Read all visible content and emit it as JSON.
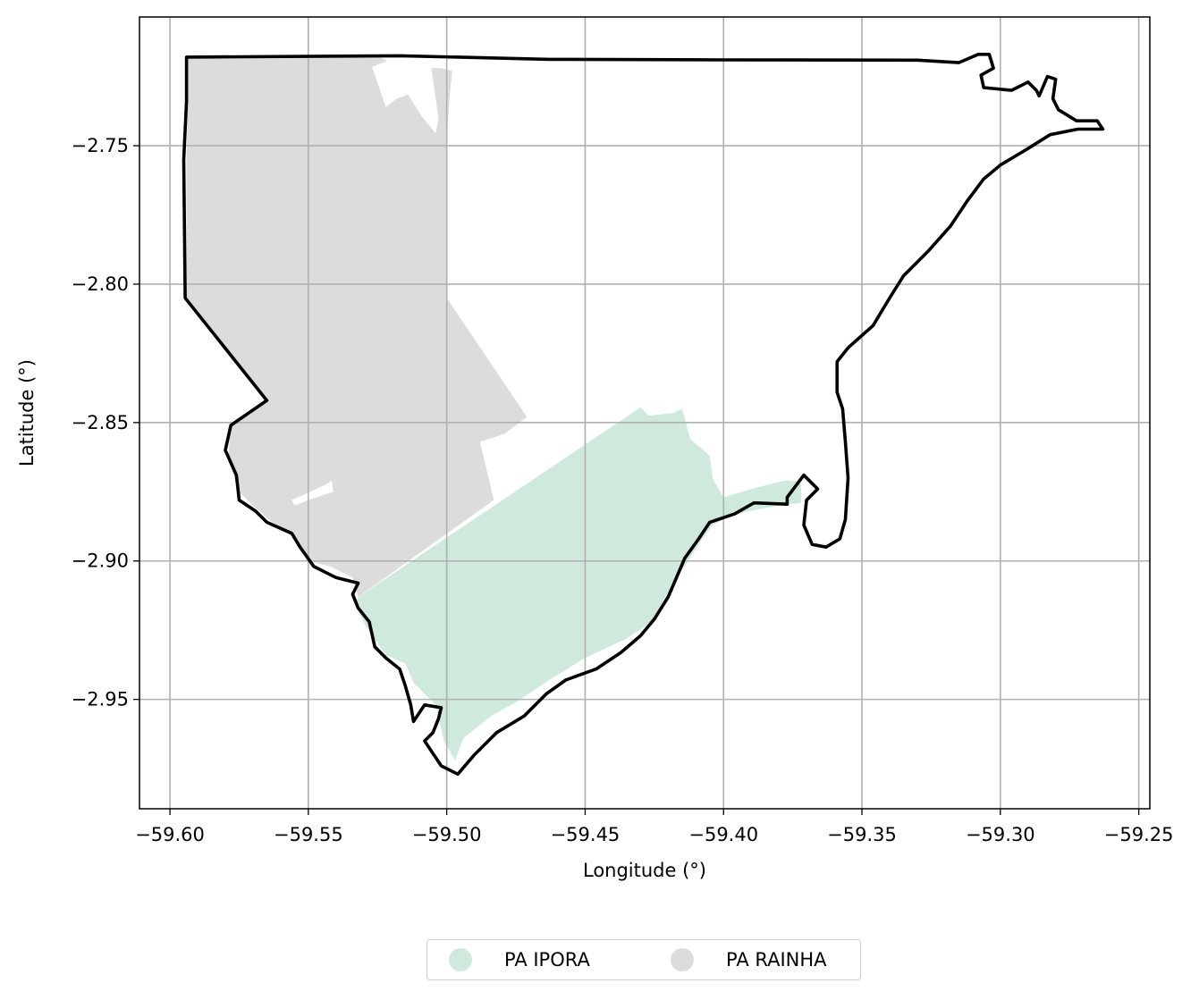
{
  "chart_data": {
    "type": "map",
    "xlabel": "Longitude (°)",
    "ylabel": "Latitude (°)",
    "xlim": [
      -59.611,
      -59.246
    ],
    "ylim": [
      -2.9895,
      -2.7035
    ],
    "x_ticks": [
      -59.6,
      -59.55,
      -59.5,
      -59.45,
      -59.4,
      -59.35,
      -59.3,
      -59.25
    ],
    "x_tick_labels": [
      "−59.60",
      "−59.55",
      "−59.50",
      "−59.45",
      "−59.40",
      "−59.35",
      "−59.30",
      "−59.25"
    ],
    "y_ticks": [
      -2.75,
      -2.8,
      -2.85,
      -2.9,
      -2.95
    ],
    "y_tick_labels": [
      "−2.75",
      "−2.80",
      "−2.85",
      "−2.90",
      "−2.95"
    ],
    "grid": true,
    "legend_placement": "bottom-center",
    "regions": [
      {
        "name": "PA IPORA",
        "color": "#cfeadd",
        "polygon": [
          [
            -59.532,
            -2.913
          ],
          [
            -59.43,
            -2.8445
          ],
          [
            -59.427,
            -2.8475
          ],
          [
            -59.418,
            -2.8465
          ],
          [
            -59.415,
            -2.845
          ],
          [
            -59.412,
            -2.856
          ],
          [
            -59.405,
            -2.862
          ],
          [
            -59.404,
            -2.87
          ],
          [
            -59.4,
            -2.877
          ],
          [
            -59.39,
            -2.874
          ],
          [
            -59.378,
            -2.871
          ],
          [
            -59.374,
            -2.871
          ],
          [
            -59.372,
            -2.872
          ],
          [
            -59.372,
            -2.879
          ],
          [
            -59.38,
            -2.88
          ],
          [
            -59.391,
            -2.882
          ],
          [
            -59.398,
            -2.884
          ],
          [
            -59.404,
            -2.887
          ],
          [
            -59.409,
            -2.894
          ],
          [
            -59.416,
            -2.905
          ],
          [
            -59.421,
            -2.913
          ],
          [
            -59.426,
            -2.922
          ],
          [
            -59.435,
            -2.928
          ],
          [
            -59.45,
            -2.935
          ],
          [
            -59.463,
            -2.943
          ],
          [
            -59.475,
            -2.951
          ],
          [
            -59.484,
            -2.956
          ],
          [
            -59.494,
            -2.964
          ],
          [
            -59.497,
            -2.972
          ],
          [
            -59.501,
            -2.965
          ],
          [
            -59.504,
            -2.952
          ],
          [
            -59.512,
            -2.944
          ],
          [
            -59.515,
            -2.937
          ],
          [
            -59.522,
            -2.934
          ],
          [
            -59.529,
            -2.924
          ],
          [
            -59.533,
            -2.916
          ]
        ]
      },
      {
        "name": "PA RAINHA",
        "color": "#dcdcdc",
        "polygon": [
          [
            -59.5945,
            -2.718
          ],
          [
            -59.524,
            -2.718
          ],
          [
            -59.519,
            -2.721
          ],
          [
            -59.51,
            -2.722
          ],
          [
            -59.502,
            -2.722
          ],
          [
            -59.498,
            -2.723
          ],
          [
            -59.499,
            -2.733
          ],
          [
            -59.5,
            -2.748
          ],
          [
            -59.5,
            -2.754
          ],
          [
            -59.5,
            -2.805
          ],
          [
            -59.471,
            -2.848
          ],
          [
            -59.479,
            -2.854
          ],
          [
            -59.488,
            -2.857
          ],
          [
            -59.483,
            -2.878
          ],
          [
            -59.532,
            -2.913
          ],
          [
            -59.534,
            -2.906
          ],
          [
            -59.542,
            -2.902
          ],
          [
            -59.55,
            -2.9
          ],
          [
            -59.556,
            -2.89
          ],
          [
            -59.563,
            -2.886
          ],
          [
            -59.57,
            -2.88
          ],
          [
            -59.575,
            -2.875
          ],
          [
            -59.579,
            -2.863
          ],
          [
            -59.578,
            -2.851
          ],
          [
            -59.565,
            -2.8415
          ],
          [
            -59.594,
            -2.8045
          ],
          [
            -59.594,
            -2.755
          ],
          [
            -59.5935,
            -2.735
          ]
        ]
      },
      {
        "name": "gap-north",
        "color": "#ffffff",
        "polygon": [
          [
            -59.527,
            -2.7215
          ],
          [
            -59.519,
            -2.7185
          ],
          [
            -59.506,
            -2.719
          ],
          [
            -59.503,
            -2.74
          ],
          [
            -59.504,
            -2.7455
          ],
          [
            -59.509,
            -2.7395
          ],
          [
            -59.514,
            -2.7315
          ],
          [
            -59.518,
            -2.733
          ],
          [
            -59.522,
            -2.736
          ]
        ]
      },
      {
        "name": "gap-west",
        "color": "#ffffff",
        "polygon": [
          [
            -59.556,
            -2.878
          ],
          [
            -59.545,
            -2.873
          ],
          [
            -59.5415,
            -2.871
          ],
          [
            -59.541,
            -2.875
          ],
          [
            -59.55,
            -2.878
          ],
          [
            -59.555,
            -2.88
          ]
        ]
      }
    ],
    "boundary": [
      [
        -59.594,
        -2.718
      ],
      [
        -59.517,
        -2.7175
      ],
      [
        -59.463,
        -2.7188
      ],
      [
        -59.4,
        -2.719
      ],
      [
        -59.33,
        -2.7191
      ],
      [
        -59.315,
        -2.72
      ],
      [
        -59.308,
        -2.717
      ],
      [
        -59.304,
        -2.717
      ],
      [
        -59.3025,
        -2.722
      ],
      [
        -59.307,
        -2.7245
      ],
      [
        -59.306,
        -2.729
      ],
      [
        -59.296,
        -2.73
      ],
      [
        -59.29,
        -2.727
      ],
      [
        -59.287,
        -2.73
      ],
      [
        -59.286,
        -2.732
      ],
      [
        -59.283,
        -2.725
      ],
      [
        -59.28,
        -2.726
      ],
      [
        -59.281,
        -2.733
      ],
      [
        -59.279,
        -2.737
      ],
      [
        -59.2725,
        -2.741
      ],
      [
        -59.265,
        -2.741
      ],
      [
        -59.263,
        -2.744
      ],
      [
        -59.272,
        -2.744
      ],
      [
        -59.282,
        -2.746
      ],
      [
        -59.29,
        -2.751
      ],
      [
        -59.3,
        -2.757
      ],
      [
        -59.306,
        -2.762
      ],
      [
        -59.312,
        -2.77
      ],
      [
        -59.318,
        -2.779
      ],
      [
        -59.326,
        -2.788
      ],
      [
        -59.335,
        -2.797
      ],
      [
        -59.34,
        -2.805
      ],
      [
        -59.346,
        -2.815
      ],
      [
        -59.355,
        -2.823
      ],
      [
        -59.359,
        -2.828
      ],
      [
        -59.359,
        -2.839
      ],
      [
        -59.357,
        -2.845
      ],
      [
        -59.356,
        -2.857
      ],
      [
        -59.355,
        -2.87
      ],
      [
        -59.356,
        -2.885
      ],
      [
        -59.358,
        -2.892
      ],
      [
        -59.363,
        -2.895
      ],
      [
        -59.368,
        -2.894
      ],
      [
        -59.371,
        -2.887
      ],
      [
        -59.37,
        -2.878
      ],
      [
        -59.366,
        -2.874
      ],
      [
        -59.371,
        -2.869
      ],
      [
        -59.377,
        -2.877
      ],
      [
        -59.377,
        -2.8795
      ],
      [
        -59.389,
        -2.879
      ],
      [
        -59.396,
        -2.883
      ],
      [
        -59.405,
        -2.886
      ],
      [
        -59.409,
        -2.892
      ],
      [
        -59.414,
        -2.899
      ],
      [
        -59.417,
        -2.906
      ],
      [
        -59.42,
        -2.913
      ],
      [
        -59.425,
        -2.921
      ],
      [
        -59.43,
        -2.927
      ],
      [
        -59.437,
        -2.933
      ],
      [
        -59.446,
        -2.939
      ],
      [
        -59.457,
        -2.943
      ],
      [
        -59.464,
        -2.948
      ],
      [
        -59.472,
        -2.956
      ],
      [
        -59.482,
        -2.962
      ],
      [
        -59.49,
        -2.97
      ],
      [
        -59.496,
        -2.977
      ],
      [
        -59.502,
        -2.974
      ],
      [
        -59.508,
        -2.965
      ],
      [
        -59.505,
        -2.962
      ],
      [
        -59.503,
        -2.957
      ],
      [
        -59.502,
        -2.953
      ],
      [
        -59.508,
        -2.952
      ],
      [
        -59.512,
        -2.958
      ],
      [
        -59.513,
        -2.952
      ],
      [
        -59.515,
        -2.945
      ],
      [
        -59.517,
        -2.939
      ],
      [
        -59.522,
        -2.935
      ],
      [
        -59.526,
        -2.931
      ],
      [
        -59.528,
        -2.922
      ],
      [
        -59.532,
        -2.917
      ],
      [
        -59.534,
        -2.912
      ],
      [
        -59.532,
        -2.908
      ],
      [
        -59.54,
        -2.906
      ],
      [
        -59.548,
        -2.902
      ],
      [
        -59.553,
        -2.895
      ],
      [
        -59.556,
        -2.89
      ],
      [
        -59.565,
        -2.886
      ],
      [
        -59.569,
        -2.882
      ],
      [
        -59.575,
        -2.878
      ],
      [
        -59.576,
        -2.869
      ],
      [
        -59.58,
        -2.86
      ],
      [
        -59.578,
        -2.851
      ],
      [
        -59.565,
        -2.842
      ],
      [
        -59.5945,
        -2.805
      ],
      [
        -59.595,
        -2.755
      ],
      [
        -59.594,
        -2.734
      ],
      [
        -59.594,
        -2.718
      ]
    ]
  },
  "legend": {
    "items": [
      {
        "label": "PA IPORA",
        "color": "#cfeadd"
      },
      {
        "label": "PA RAINHA",
        "color": "#dcdcdc"
      }
    ]
  }
}
